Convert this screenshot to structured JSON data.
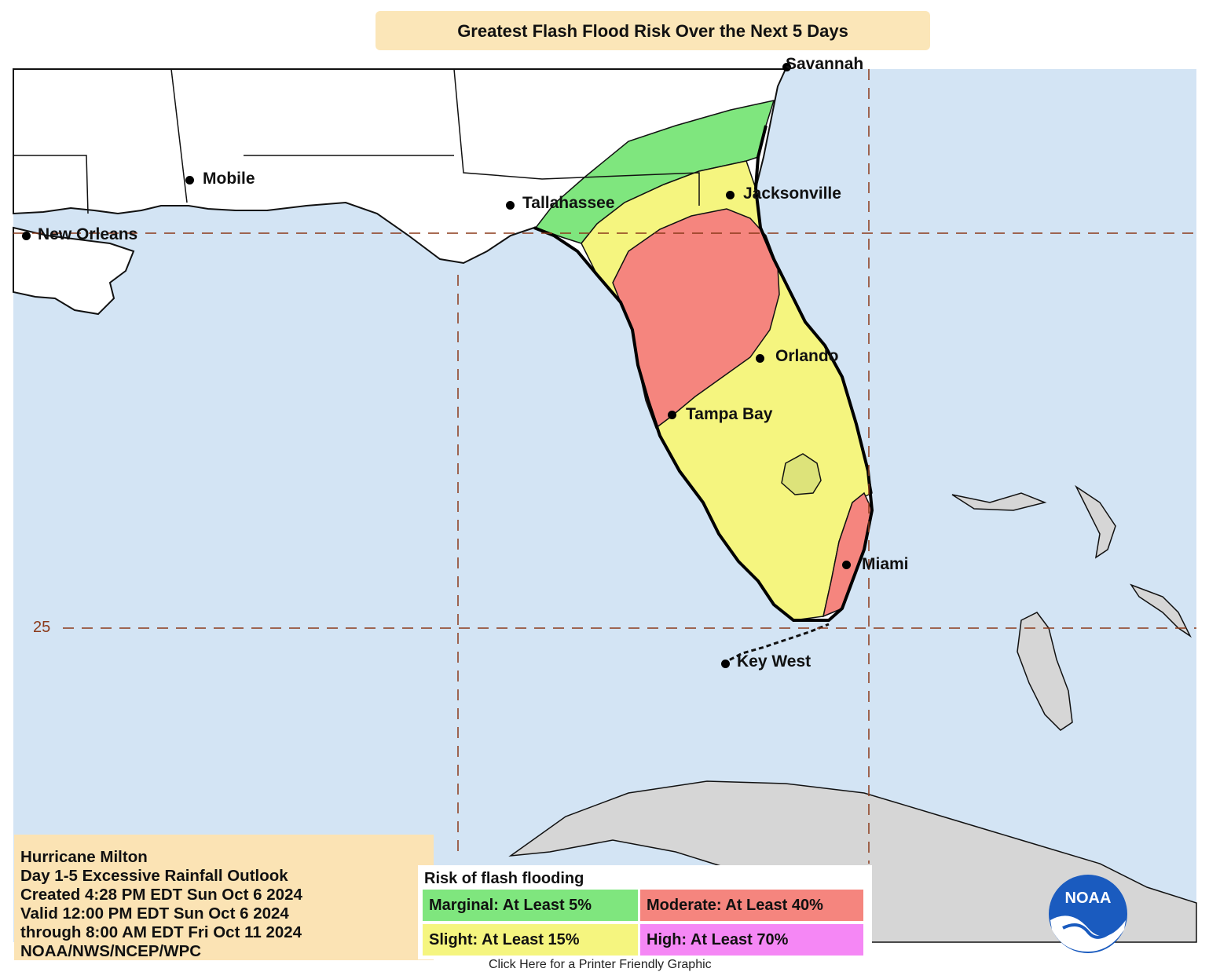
{
  "title": "Greatest Flash Flood Risk Over the Next 5 Days",
  "cities": [
    {
      "name": "Savannah"
    },
    {
      "name": "Mobile"
    },
    {
      "name": "Tallahassee"
    },
    {
      "name": "Jacksonville"
    },
    {
      "name": "New Orleans"
    },
    {
      "name": "Orlando"
    },
    {
      "name": "Tampa Bay"
    },
    {
      "name": "Miami"
    },
    {
      "name": "Key West"
    }
  ],
  "latitude_label": "25",
  "info": {
    "line1": "Hurricane Milton",
    "line2": "Day 1-5 Excessive Rainfall Outlook",
    "line3": "Created 4:28 PM EDT Sun Oct 6 2024",
    "line4": "Valid 12:00 PM EDT Sun Oct 6 2024",
    "line5": "through 8:00 AM EDT Fri Oct 11 2024",
    "line6": "NOAA/NWS/NCEP/WPC"
  },
  "legend": {
    "title": "Risk of flash flooding",
    "marginal": "Marginal: At Least 5%",
    "moderate": "Moderate: At Least 40%",
    "slight": "Slight: At Least 15%",
    "high": "High: At Least 70%"
  },
  "colors": {
    "ocean": "#d3e4f4",
    "land": "#ffffff",
    "foreign_land": "#d6d6d6",
    "marginal": "#7fe67e",
    "slight": "#f5f57f",
    "moderate": "#f5857e",
    "high": "#f587f5"
  },
  "logo": {
    "text": "NOAA"
  },
  "footer": "Click Here for a Printer Friendly Graphic"
}
